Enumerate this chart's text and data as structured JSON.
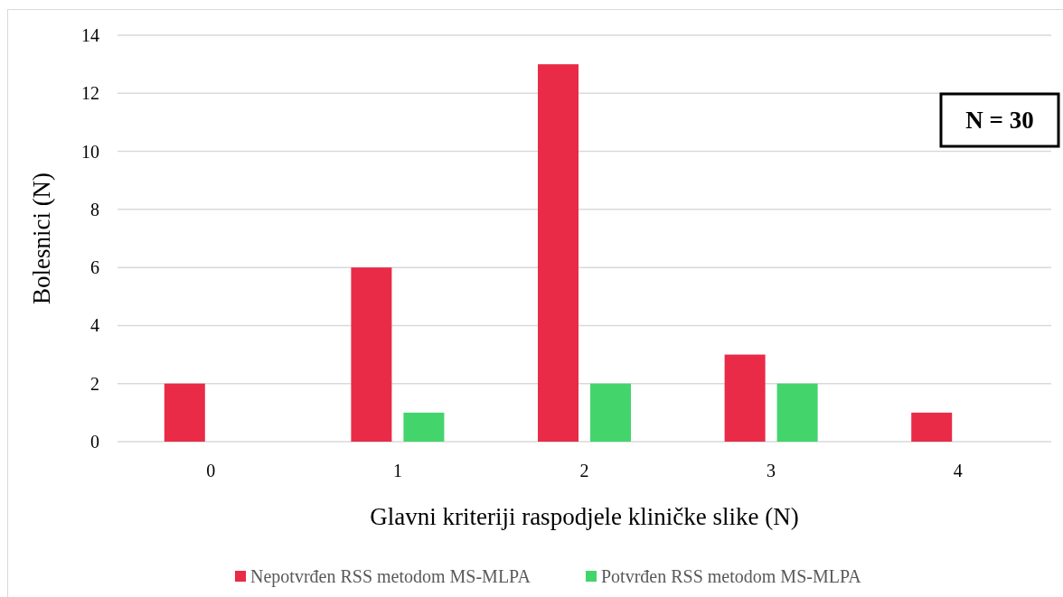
{
  "chart_data": {
    "type": "bar",
    "categories": [
      "0",
      "1",
      "2",
      "3",
      "4"
    ],
    "series": [
      {
        "name": "Nepotvrđen RSS metodom MS-MLPA",
        "color": "#e92b47",
        "values": [
          2,
          6,
          13,
          3,
          1
        ]
      },
      {
        "name": "Potvrđen RSS metodom MS-MLPA",
        "color": "#43d56c",
        "values": [
          0,
          1,
          2,
          2,
          0
        ]
      }
    ],
    "xlabel": "Glavni kriteriji raspodjele kliničke slike (N)",
    "ylabel": "Bolesnici (N)",
    "ylim": [
      0,
      14
    ],
    "yticks": [
      0,
      2,
      4,
      6,
      8,
      10,
      12,
      14
    ],
    "grid": "y",
    "legend": "bottom",
    "annotations": [
      "N = 30"
    ]
  }
}
